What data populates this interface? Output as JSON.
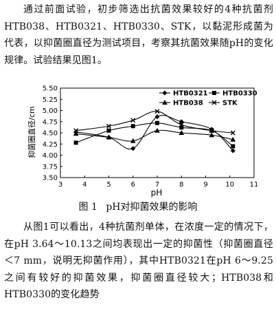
{
  "intro_paragraph": "通过前面试验，初步筛选出抗菌效果较好的4种抗菌剂HTB038、HTB0321、HTB0330、STK，以黏泥形成菌为代表，以抑菌圈直径为测试项目，考察其抗菌效果随pH的变化规律。试验结果见图1。",
  "figure_caption": {
    "number": "图 1",
    "text": "pH对抑菌效果的影响"
  },
  "result_paragraph": "从图1可以看出，4种抗菌剂单体，在浓度一定的情况下，在pH 3.64～10.13之间均表现出一定的抑菌性（抑菌圈直径＜7 mm，说明无抑菌作用），其中HTB0321在pH 6～9.25之间有较好的抑菌效果，抑菌圈直径较大；HTB038和HTB0330的变化趋势",
  "chart_data": {
    "type": "line",
    "xlabel": "pH",
    "ylabel": "抑菌圈直径/cm",
    "xlim": [
      3,
      11
    ],
    "ylim": [
      3.5,
      5.5
    ],
    "x_ticks": [
      "3",
      "4",
      "5",
      "6",
      "7",
      "8",
      "9",
      "10",
      "11"
    ],
    "y_ticks": [
      "3.50",
      "3.75",
      "4.00",
      "4.25",
      "4.50",
      "4.75",
      "5.00",
      "5.25",
      "5.50"
    ],
    "legend_position": "top-right",
    "series": [
      {
        "name": "HTB0321",
        "marker": "diamond",
        "x": [
          3.64,
          5.0,
          6.0,
          7.0,
          8.0,
          9.25,
          10.13
        ],
        "y": [
          4.52,
          4.4,
          4.15,
          4.86,
          4.75,
          4.58,
          4.1
        ]
      },
      {
        "name": "HTB0330",
        "marker": "square",
        "x": [
          3.64,
          5.0,
          6.0,
          7.0,
          8.0,
          9.25,
          10.13
        ],
        "y": [
          4.28,
          4.55,
          4.65,
          4.72,
          4.62,
          4.55,
          4.2
        ]
      },
      {
        "name": "HTB038",
        "marker": "triangle",
        "x": [
          3.64,
          5.0,
          6.0,
          7.0,
          8.0,
          9.25,
          10.13
        ],
        "y": [
          4.48,
          4.4,
          4.32,
          4.55,
          4.5,
          4.45,
          4.35
        ]
      },
      {
        "name": "STK",
        "marker": "cross",
        "x": [
          3.64,
          5.0,
          6.0,
          7.0,
          8.0,
          9.25,
          10.13
        ],
        "y": [
          4.55,
          4.65,
          4.78,
          4.98,
          4.68,
          4.55,
          4.5
        ]
      }
    ]
  }
}
